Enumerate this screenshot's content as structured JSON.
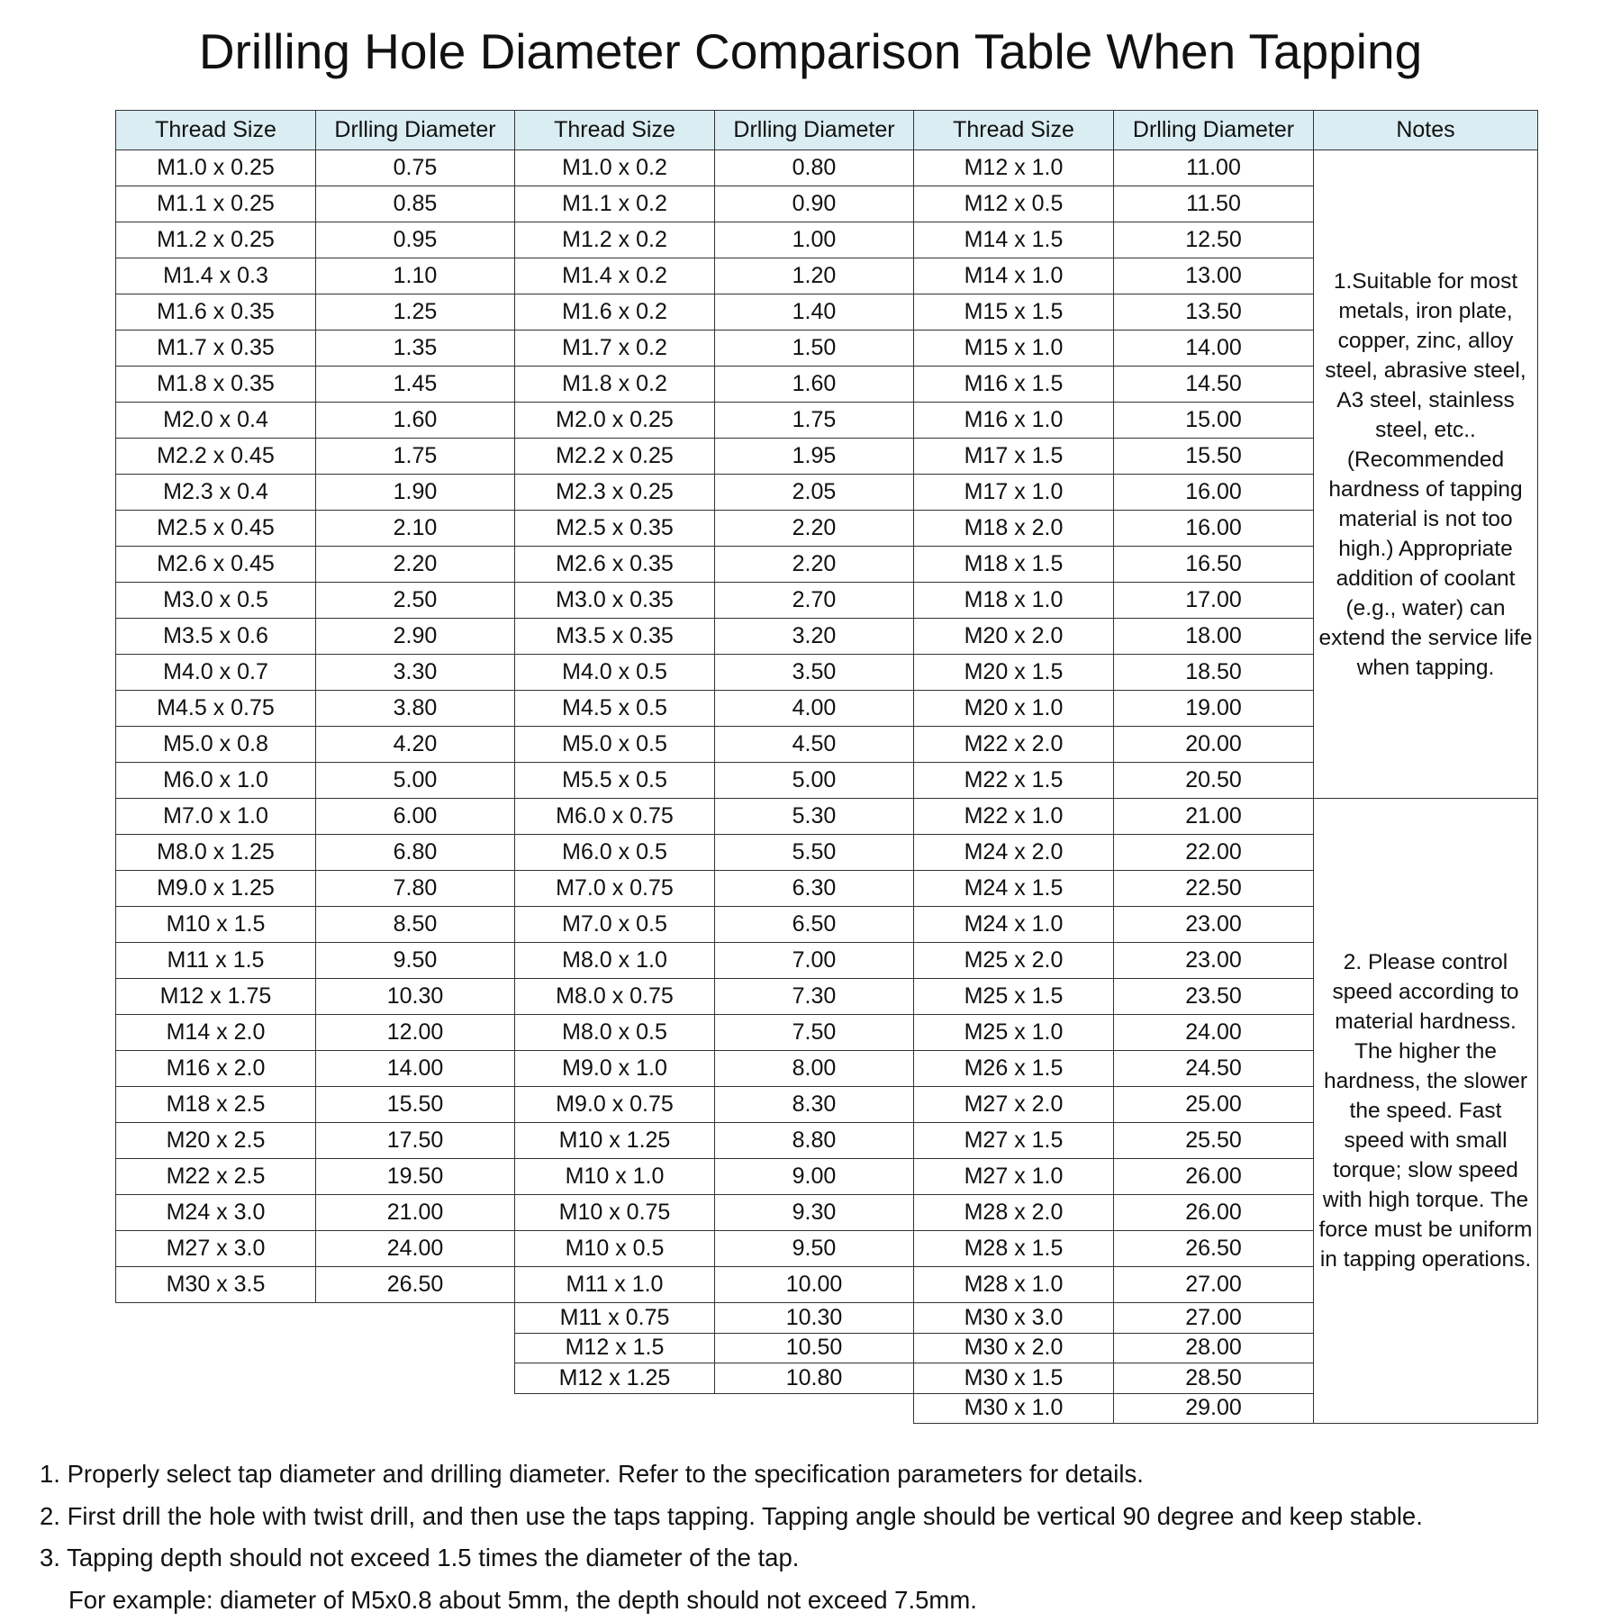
{
  "title": "Drilling Hole Diameter Comparison Table When Tapping",
  "headers": [
    "Thread Size",
    "Drlling Diameter",
    "Thread Size",
    "Drlling Diameter",
    "Thread Size",
    "Drlling Diameter",
    "Notes"
  ],
  "colors": {
    "header_bg": "#daedf3",
    "border": "#333333"
  },
  "groups": [
    {
      "rows": [
        [
          "M1.0 x 0.25",
          "0.75"
        ],
        [
          "M1.1 x 0.25",
          "0.85"
        ],
        [
          "M1.2 x 0.25",
          "0.95"
        ],
        [
          "M1.4 x 0.3",
          "1.10"
        ],
        [
          "M1.6 x 0.35",
          "1.25"
        ],
        [
          "M1.7 x 0.35",
          "1.35"
        ],
        [
          "M1.8 x 0.35",
          "1.45"
        ],
        [
          "M2.0 x 0.4",
          "1.60"
        ],
        [
          "M2.2 x 0.45",
          "1.75"
        ],
        [
          "M2.3 x 0.4",
          "1.90"
        ],
        [
          "M2.5 x 0.45",
          "2.10"
        ],
        [
          "M2.6 x 0.45",
          "2.20"
        ],
        [
          "M3.0 x 0.5",
          "2.50"
        ],
        [
          "M3.5 x 0.6",
          "2.90"
        ],
        [
          "M4.0 x 0.7",
          "3.30"
        ],
        [
          "M4.5 x 0.75",
          "3.80"
        ],
        [
          "M5.0 x 0.8",
          "4.20"
        ],
        [
          "M6.0 x 1.0",
          "5.00"
        ],
        [
          "M7.0 x 1.0",
          "6.00"
        ],
        [
          "M8.0 x 1.25",
          "6.80"
        ],
        [
          "M9.0 x 1.25",
          "7.80"
        ],
        [
          "M10 x 1.5",
          "8.50"
        ],
        [
          "M11 x 1.5",
          "9.50"
        ],
        [
          "M12 x 1.75",
          "10.30"
        ],
        [
          "M14 x 2.0",
          "12.00"
        ],
        [
          "M16 x 2.0",
          "14.00"
        ],
        [
          "M18 x 2.5",
          "15.50"
        ],
        [
          "M20 x 2.5",
          "17.50"
        ],
        [
          "M22 x 2.5",
          "19.50"
        ],
        [
          "M24 x 3.0",
          "21.00"
        ],
        [
          "M27 x 3.0",
          "24.00"
        ],
        [
          "M30 x 3.5",
          "26.50"
        ]
      ]
    },
    {
      "rows": [
        [
          "M1.0 x 0.2",
          "0.80"
        ],
        [
          "M1.1 x 0.2",
          "0.90"
        ],
        [
          "M1.2 x 0.2",
          "1.00"
        ],
        [
          "M1.4 x 0.2",
          "1.20"
        ],
        [
          "M1.6 x 0.2",
          "1.40"
        ],
        [
          "M1.7 x 0.2",
          "1.50"
        ],
        [
          "M1.8 x 0.2",
          "1.60"
        ],
        [
          "M2.0 x 0.25",
          "1.75"
        ],
        [
          "M2.2 x 0.25",
          "1.95"
        ],
        [
          "M2.3 x 0.25",
          "2.05"
        ],
        [
          "M2.5 x 0.35",
          "2.20"
        ],
        [
          "M2.6 x 0.35",
          "2.20"
        ],
        [
          "M3.0 x 0.35",
          "2.70"
        ],
        [
          "M3.5 x 0.35",
          "3.20"
        ],
        [
          "M4.0 x 0.5",
          "3.50"
        ],
        [
          "M4.5 x 0.5",
          "4.00"
        ],
        [
          "M5.0 x 0.5",
          "4.50"
        ],
        [
          "M5.5 x 0.5",
          "5.00"
        ],
        [
          "M6.0 x 0.75",
          "5.30"
        ],
        [
          "M6.0 x 0.5",
          "5.50"
        ],
        [
          "M7.0 x 0.75",
          "6.30"
        ],
        [
          "M7.0 x 0.5",
          "6.50"
        ],
        [
          "M8.0 x 1.0",
          "7.00"
        ],
        [
          "M8.0 x 0.75",
          "7.30"
        ],
        [
          "M8.0 x 0.5",
          "7.50"
        ],
        [
          "M9.0 x 1.0",
          "8.00"
        ],
        [
          "M9.0 x 0.75",
          "8.30"
        ],
        [
          "M10 x 1.25",
          "8.80"
        ],
        [
          "M10 x 1.0",
          "9.00"
        ],
        [
          "M10 x 0.75",
          "9.30"
        ],
        [
          "M10 x 0.5",
          "9.50"
        ],
        [
          "M11 x 1.0",
          "10.00"
        ],
        [
          "M11 x 0.75",
          "10.30"
        ],
        [
          "M12 x 1.5",
          "10.50"
        ],
        [
          "M12 x 1.25",
          "10.80"
        ]
      ]
    },
    {
      "rows": [
        [
          "M12 x 1.0",
          "11.00"
        ],
        [
          "M12 x 0.5",
          "11.50"
        ],
        [
          "M14 x 1.5",
          "12.50"
        ],
        [
          "M14 x 1.0",
          "13.00"
        ],
        [
          "M15 x 1.5",
          "13.50"
        ],
        [
          "M15 x 1.0",
          "14.00"
        ],
        [
          "M16 x 1.5",
          "14.50"
        ],
        [
          "M16 x 1.0",
          "15.00"
        ],
        [
          "M17 x 1.5",
          "15.50"
        ],
        [
          "M17 x 1.0",
          "16.00"
        ],
        [
          "M18 x 2.0",
          "16.00"
        ],
        [
          "M18 x 1.5",
          "16.50"
        ],
        [
          "M18 x 1.0",
          "17.00"
        ],
        [
          "M20 x 2.0",
          "18.00"
        ],
        [
          "M20 x 1.5",
          "18.50"
        ],
        [
          "M20 x 1.0",
          "19.00"
        ],
        [
          "M22 x 2.0",
          "20.00"
        ],
        [
          "M22 x 1.5",
          "20.50"
        ],
        [
          "M22 x 1.0",
          "21.00"
        ],
        [
          "M24 x 2.0",
          "22.00"
        ],
        [
          "M24 x 1.5",
          "22.50"
        ],
        [
          "M24 x 1.0",
          "23.00"
        ],
        [
          "M25 x 2.0",
          "23.00"
        ],
        [
          "M25 x 1.5",
          "23.50"
        ],
        [
          "M25 x 1.0",
          "24.00"
        ],
        [
          "M26 x 1.5",
          "24.50"
        ],
        [
          "M27 x 2.0",
          "25.00"
        ],
        [
          "M27 x 1.5",
          "25.50"
        ],
        [
          "M27 x 1.0",
          "26.00"
        ],
        [
          "M28 x 2.0",
          "26.00"
        ],
        [
          "M28 x 1.5",
          "26.50"
        ],
        [
          "M28 x 1.0",
          "27.00"
        ],
        [
          "M30 x 3.0",
          "27.00"
        ],
        [
          "M30 x 2.0",
          "28.00"
        ],
        [
          "M30 x 1.5",
          "28.50"
        ],
        [
          "M30 x 1.0",
          "29.00"
        ]
      ]
    }
  ],
  "notes": [
    "1.Suitable for most metals, iron plate, copper, zinc, alloy steel, abrasive steel, A3 steel, stainless steel, etc..(Recommended hardness of tapping material is not too high.) Appropriate addition of coolant (e.g., water) can extend the service life when tapping.",
    "2. Please control speed according to material hardness. The higher the hardness, the slower the speed. Fast speed with small torque; slow speed with high torque. The force must be uniform in tapping operations."
  ],
  "footer": [
    "1. Properly select tap diameter and drilling diameter. Refer to the specification parameters for details.",
    "2. First drill the hole with twist drill, and then use the taps tapping. Tapping angle should be vertical 90 degree and keep stable.",
    "3. Tapping depth should not exceed 1.5 times the diameter of the tap.",
    "For example: diameter of M5x0.8 about 5mm, the depth should not exceed 7.5mm."
  ]
}
